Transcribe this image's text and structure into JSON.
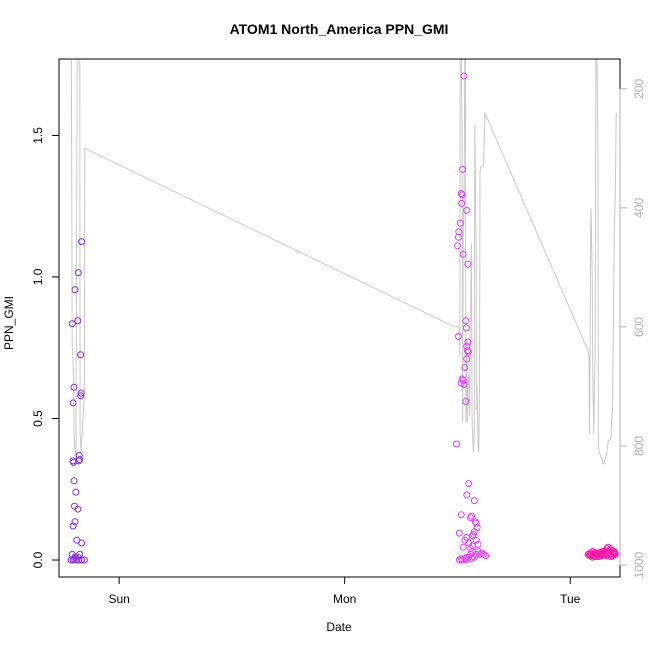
{
  "chart_data": {
    "type": "scatter",
    "title": "ATOM1 North_America PPN_GMI",
    "xlabel": "Date",
    "ylabel": "PPN_GMI",
    "x_units": "hours since start of Saturday",
    "xlim": [
      17.6,
      77.3
    ],
    "ylim": [
      -0.06,
      1.77
    ],
    "x_ticks": [
      {
        "value": 24,
        "label": "Sun"
      },
      {
        "value": 48,
        "label": "Mon"
      },
      {
        "value": 72,
        "label": "Tue"
      }
    ],
    "y_ticks": [
      {
        "value": 0.0,
        "label": "0.0"
      },
      {
        "value": 0.5,
        "label": "0.5"
      },
      {
        "value": 1.0,
        "label": "1.0"
      },
      {
        "value": 1.5,
        "label": "1.5"
      }
    ],
    "secondary_axis": {
      "side": "right",
      "reversed": true,
      "ylim": [
        1020,
        150
      ],
      "ticks": [
        {
          "value": 200,
          "label": "200"
        },
        {
          "value": 400,
          "label": "400"
        },
        {
          "value": 600,
          "label": "600"
        },
        {
          "value": 800,
          "label": "800"
        },
        {
          "value": 1000,
          "label": "1000"
        }
      ],
      "color": "#b0b0b0"
    },
    "grid": false,
    "series": [
      {
        "color": "#8a2be2",
        "marker": "open-circle",
        "points": [
          [
            18.9,
            0.0
          ],
          [
            19.0,
            0.02
          ],
          [
            19.1,
            0.0
          ],
          [
            19.2,
            0.005
          ],
          [
            19.3,
            0.01
          ],
          [
            19.5,
            0.0
          ],
          [
            19.6,
            0.01
          ],
          [
            19.7,
            0.0
          ],
          [
            19.8,
            0.02
          ],
          [
            20.0,
            0.0
          ],
          [
            20.3,
            0.0
          ],
          [
            19.1,
            0.12
          ],
          [
            19.3,
            0.135
          ],
          [
            19.25,
            0.19
          ],
          [
            19.2,
            0.28
          ],
          [
            19.4,
            0.24
          ],
          [
            19.6,
            0.18
          ],
          [
            19.5,
            0.07
          ],
          [
            20.0,
            0.06
          ],
          [
            19.1,
            0.35
          ],
          [
            19.15,
            0.345
          ],
          [
            19.7,
            0.35
          ],
          [
            19.75,
            0.37
          ],
          [
            19.8,
            0.355
          ],
          [
            19.1,
            0.555
          ],
          [
            19.2,
            0.61
          ],
          [
            19.9,
            0.58
          ],
          [
            19.95,
            0.59
          ],
          [
            19.0,
            0.835
          ],
          [
            19.3,
            0.955
          ],
          [
            19.6,
            0.845
          ],
          [
            19.9,
            0.725
          ],
          [
            19.65,
            1.015
          ],
          [
            20.0,
            1.125
          ]
        ]
      },
      {
        "color": "#e040fb",
        "points": [
          [
            60.2,
            0.0
          ],
          [
            60.4,
            0.005
          ],
          [
            60.5,
            0.0
          ],
          [
            60.8,
            0.005
          ],
          [
            60.9,
            0.0
          ],
          [
            61.0,
            0.01
          ],
          [
            61.2,
            0.01
          ],
          [
            61.4,
            0.02
          ],
          [
            61.5,
            0.005
          ],
          [
            61.6,
            0.03
          ],
          [
            61.8,
            0.01
          ],
          [
            62.0,
            0.02
          ],
          [
            62.2,
            0.03
          ],
          [
            62.4,
            0.02
          ],
          [
            62.6,
            0.025
          ],
          [
            62.8,
            0.02
          ],
          [
            63.0,
            0.015
          ],
          [
            60.2,
            0.095
          ],
          [
            60.4,
            0.16
          ],
          [
            60.6,
            0.045
          ],
          [
            60.8,
            0.07
          ],
          [
            61.0,
            0.23
          ],
          [
            61.2,
            0.27
          ],
          [
            61.4,
            0.15
          ],
          [
            61.5,
            0.155
          ],
          [
            61.6,
            0.085
          ],
          [
            61.7,
            0.09
          ],
          [
            61.8,
            0.21
          ],
          [
            62.0,
            0.13
          ],
          [
            62.1,
            0.115
          ],
          [
            62.2,
            0.055
          ],
          [
            61.2,
            0.06
          ],
          [
            61.4,
            0.04
          ],
          [
            61.6,
            0.05
          ],
          [
            61.8,
            0.1
          ],
          [
            62.0,
            0.07
          ],
          [
            61.9,
            0.135
          ],
          [
            61.0,
            0.08
          ],
          [
            59.9,
            0.41
          ],
          [
            60.1,
            0.79
          ],
          [
            60.4,
            0.625
          ],
          [
            60.7,
            0.62
          ],
          [
            60.9,
            0.56
          ],
          [
            60.5,
            0.64
          ],
          [
            60.6,
            0.635
          ],
          [
            60.8,
            0.68
          ],
          [
            61.0,
            0.755
          ],
          [
            61.1,
            0.77
          ],
          [
            61.05,
            0.74
          ],
          [
            61.15,
            0.735
          ],
          [
            61.0,
            0.71
          ],
          [
            60.95,
            0.82
          ],
          [
            60.9,
            0.845
          ],
          [
            60.0,
            1.11
          ],
          [
            60.1,
            1.14
          ],
          [
            60.15,
            1.16
          ],
          [
            60.3,
            1.19
          ],
          [
            60.4,
            1.295
          ],
          [
            60.45,
            1.26
          ],
          [
            60.5,
            1.29
          ],
          [
            60.6,
            1.08
          ],
          [
            60.55,
            1.38
          ],
          [
            60.7,
            1.71
          ],
          [
            61.0,
            1.235
          ],
          [
            61.1,
            1.045
          ]
        ]
      },
      {
        "color": "#ff1aa8",
        "points": [
          [
            73.9,
            0.02
          ],
          [
            74.0,
            0.022
          ],
          [
            74.1,
            0.018
          ],
          [
            74.2,
            0.025
          ],
          [
            74.3,
            0.02
          ],
          [
            74.4,
            0.03
          ],
          [
            74.5,
            0.015
          ],
          [
            74.6,
            0.02
          ],
          [
            74.7,
            0.012
          ],
          [
            74.8,
            0.025
          ],
          [
            74.9,
            0.02
          ],
          [
            75.0,
            0.018
          ],
          [
            75.1,
            0.025
          ],
          [
            75.2,
            0.02
          ],
          [
            75.3,
            0.015
          ],
          [
            75.4,
            0.022
          ],
          [
            75.5,
            0.03
          ],
          [
            75.6,
            0.02
          ],
          [
            75.7,
            0.025
          ],
          [
            75.8,
            0.018
          ],
          [
            75.9,
            0.04
          ],
          [
            76.0,
            0.022
          ],
          [
            76.1,
            0.03
          ],
          [
            76.2,
            0.025
          ],
          [
            76.3,
            0.02
          ],
          [
            76.4,
            0.035
          ],
          [
            76.5,
            0.028
          ],
          [
            76.6,
            0.022
          ],
          [
            76.7,
            0.018
          ],
          [
            76.8,
            0.02
          ],
          [
            74.15,
            0.015
          ],
          [
            74.35,
            0.01
          ],
          [
            74.55,
            0.025
          ],
          [
            74.75,
            0.02
          ],
          [
            75.05,
            0.012
          ],
          [
            75.25,
            0.028
          ],
          [
            75.45,
            0.018
          ],
          [
            75.65,
            0.032
          ],
          [
            75.85,
            0.015
          ],
          [
            76.05,
            0.045
          ],
          [
            76.25,
            0.038
          ],
          [
            76.45,
            0.015
          ],
          [
            76.65,
            0.03
          ],
          [
            76.75,
            0.025
          ],
          [
            76.35,
            0.012
          ]
        ]
      }
    ],
    "altitude_line": {
      "color": "#c8c8c8",
      "axis": "secondary",
      "points": [
        [
          18.9,
          50
        ],
        [
          19.0,
          630
        ],
        [
          19.1,
          660
        ],
        [
          19.15,
          700
        ],
        [
          19.2,
          780
        ],
        [
          19.4,
          830
        ],
        [
          19.55,
          50
        ],
        [
          19.8,
          50
        ],
        [
          19.85,
          780
        ],
        [
          19.95,
          810
        ],
        [
          20.1,
          770
        ],
        [
          20.3,
          710
        ],
        [
          20.35,
          300
        ],
        [
          59.7,
          600
        ],
        [
          60.2,
          600
        ],
        [
          60.25,
          650
        ],
        [
          60.3,
          50
        ],
        [
          60.4,
          80
        ],
        [
          60.5,
          300
        ],
        [
          60.55,
          760
        ],
        [
          60.6,
          480
        ],
        [
          60.65,
          400
        ],
        [
          60.7,
          420
        ],
        [
          60.8,
          100
        ],
        [
          60.85,
          130
        ],
        [
          60.9,
          760
        ],
        [
          61.0,
          620
        ],
        [
          61.05,
          760
        ],
        [
          61.1,
          700
        ],
        [
          61.2,
          680
        ],
        [
          61.3,
          750
        ],
        [
          61.35,
          610
        ],
        [
          61.4,
          580
        ],
        [
          61.5,
          460
        ],
        [
          61.55,
          740
        ],
        [
          61.6,
          780
        ],
        [
          61.7,
          810
        ],
        [
          61.8,
          780
        ],
        [
          61.85,
          260
        ],
        [
          61.95,
          420
        ],
        [
          62.0,
          470
        ],
        [
          62.05,
          740
        ],
        [
          62.1,
          700
        ],
        [
          62.15,
          760
        ],
        [
          62.2,
          800
        ],
        [
          62.25,
          810
        ],
        [
          62.3,
          780
        ],
        [
          62.35,
          700
        ],
        [
          62.4,
          340
        ],
        [
          62.5,
          330
        ],
        [
          62.8,
          330
        ],
        [
          62.9,
          240
        ],
        [
          73.9,
          640
        ],
        [
          74.0,
          650
        ],
        [
          74.05,
          780
        ],
        [
          74.1,
          700
        ],
        [
          74.15,
          540
        ],
        [
          74.2,
          400
        ],
        [
          74.25,
          420
        ],
        [
          74.35,
          520
        ],
        [
          74.4,
          660
        ],
        [
          74.5,
          780
        ],
        [
          74.6,
          690
        ],
        [
          74.65,
          650
        ],
        [
          74.7,
          300
        ],
        [
          74.75,
          60
        ],
        [
          74.8,
          90
        ],
        [
          74.85,
          160
        ],
        [
          74.95,
          300
        ],
        [
          75.0,
          800
        ],
        [
          75.1,
          810
        ],
        [
          75.3,
          820
        ],
        [
          75.4,
          820
        ],
        [
          75.5,
          830
        ],
        [
          75.6,
          830
        ],
        [
          75.7,
          820
        ],
        [
          75.8,
          820
        ],
        [
          75.9,
          810
        ],
        [
          76.0,
          800
        ],
        [
          76.05,
          790
        ],
        [
          76.2,
          790
        ],
        [
          76.3,
          790
        ],
        [
          76.35,
          780
        ],
        [
          76.4,
          760
        ],
        [
          76.5,
          740
        ],
        [
          76.6,
          580
        ],
        [
          76.7,
          430
        ],
        [
          76.8,
          380
        ],
        [
          76.9,
          240
        ]
      ]
    }
  }
}
